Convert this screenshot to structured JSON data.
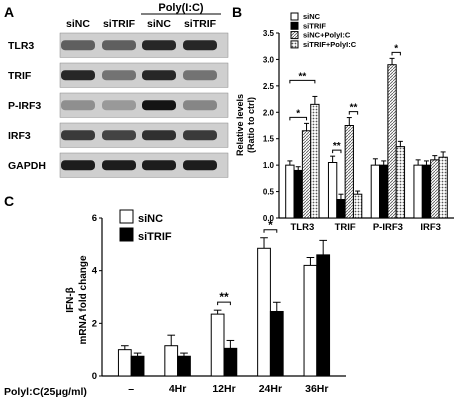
{
  "panel_a": {
    "letter": "A",
    "treatment": "Poly(I:C)",
    "lanes": [
      "siNC",
      "siTRIF",
      "siNC",
      "siTRIF"
    ],
    "proteins": [
      "TLR3",
      "TRIF",
      "P-IRF3",
      "IRF3",
      "GAPDH"
    ],
    "band_intensity": [
      [
        0.55,
        0.55,
        0.85,
        0.85
      ],
      [
        0.85,
        0.45,
        0.85,
        0.45
      ],
      [
        0.3,
        0.25,
        0.95,
        0.35
      ],
      [
        0.75,
        0.7,
        0.8,
        0.75
      ],
      [
        0.9,
        0.9,
        0.9,
        0.9
      ]
    ]
  },
  "chart_data": [
    {
      "panel": "B",
      "type": "bar",
      "title": "",
      "xlabel": "",
      "ylabel": [
        "Relative levels",
        "(Ratio to ctrl)"
      ],
      "ylim": [
        0,
        3.5
      ],
      "yticks": [
        "0.0",
        "0.5",
        "1.0",
        "1.5",
        "2.0",
        "2.5",
        "3.0",
        "3.5"
      ],
      "categories": [
        "TLR3",
        "TRIF",
        "P-IRF3",
        "IRF3"
      ],
      "legend_position": "top-left",
      "series": [
        {
          "name": "siNC",
          "style": "white",
          "values": [
            1.0,
            1.05,
            1.0,
            1.0
          ],
          "errors": [
            0.08,
            0.12,
            0.12,
            0.1
          ]
        },
        {
          "name": "siTRIF",
          "style": "black",
          "values": [
            0.9,
            0.35,
            1.0,
            1.0
          ],
          "errors": [
            0.07,
            0.1,
            0.08,
            0.08
          ]
        },
        {
          "name": "siNC+PolyI:C",
          "style": "hatch",
          "values": [
            1.65,
            1.75,
            2.9,
            1.1
          ],
          "errors": [
            0.14,
            0.15,
            0.12,
            0.08
          ]
        },
        {
          "name": "siTRIF+PolyI:C",
          "style": "dots",
          "values": [
            2.15,
            0.45,
            1.35,
            1.15
          ],
          "errors": [
            0.15,
            0.06,
            0.1,
            0.1
          ]
        }
      ],
      "significance": [
        {
          "label": "*",
          "from": [
            0,
            0
          ],
          "to": [
            0,
            2
          ]
        },
        {
          "label": "**",
          "from": [
            0,
            0
          ],
          "to": [
            0,
            3
          ]
        },
        {
          "label": "**",
          "from": [
            1,
            0
          ],
          "to": [
            1,
            1
          ]
        },
        {
          "label": "**",
          "from": [
            1,
            2
          ],
          "to": [
            1,
            3
          ]
        },
        {
          "label": "*",
          "from": [
            2,
            2
          ],
          "to": [
            2,
            3
          ]
        }
      ]
    },
    {
      "panel": "C",
      "type": "bar",
      "title": "",
      "xlabel": "Polyl:C(25μg/ml)",
      "ylabel": [
        "IFN-β",
        "mRNA fold change"
      ],
      "ylim": [
        0,
        6
      ],
      "yticks": [
        "0",
        "2",
        "4",
        "6"
      ],
      "categories": [
        "–",
        "4Hr",
        "12Hr",
        "24Hr",
        "36Hr"
      ],
      "legend_position": "top-left",
      "series": [
        {
          "name": "siNC",
          "style": "white",
          "values": [
            1.0,
            1.15,
            2.35,
            4.85,
            4.2
          ],
          "errors": [
            0.15,
            0.4,
            0.15,
            0.4,
            0.3
          ]
        },
        {
          "name": "siTRIF",
          "style": "black",
          "values": [
            0.75,
            0.75,
            1.05,
            2.45,
            4.6
          ],
          "errors": [
            0.12,
            0.12,
            0.3,
            0.35,
            0.55
          ]
        }
      ],
      "significance": [
        {
          "label": "**",
          "category": 2
        },
        {
          "label": "*",
          "category": 3
        }
      ]
    }
  ],
  "letters": {
    "b": "B",
    "c": "C"
  }
}
